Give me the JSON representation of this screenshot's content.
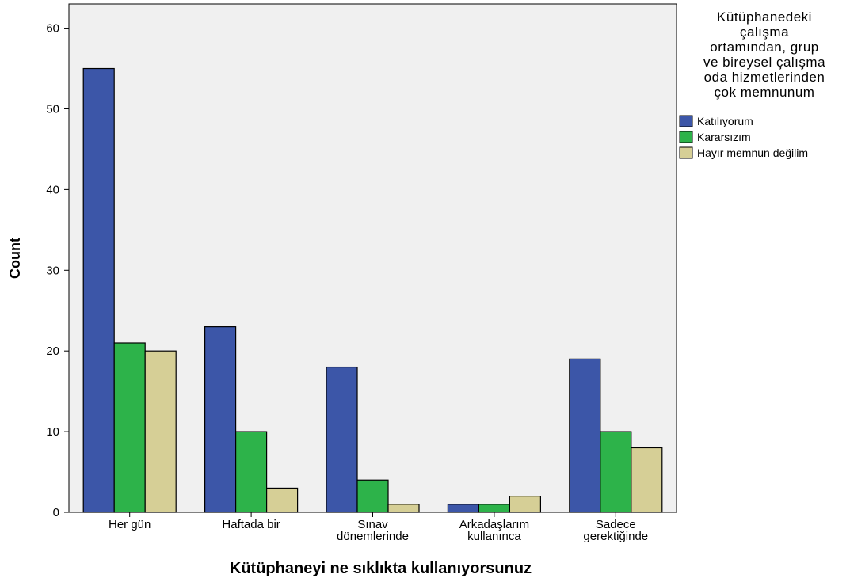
{
  "chart_data": {
    "type": "bar",
    "xlabel": "Kütüphaneyi ne sıklıkta kullanıyorsunuz",
    "ylabel": "Count",
    "ylim": [
      0,
      63
    ],
    "yticks": [
      0,
      10,
      20,
      30,
      40,
      50,
      60
    ],
    "categories": [
      [
        "Her gün"
      ],
      [
        "Haftada bir"
      ],
      [
        "Sınav",
        "dönemlerinde"
      ],
      [
        "Arkadaşlarım",
        "kullanınca"
      ],
      [
        "Sadece",
        "gerektiğinde"
      ]
    ],
    "legend": {
      "title": [
        "Kütüphanedeki",
        "çalışma",
        "ortamından, grup",
        "ve bireysel çalışma",
        "oda hizmetlerinden",
        "çok memnunum"
      ],
      "placement": "right"
    },
    "series": [
      {
        "name": "Katılıyorum",
        "color": "#3c56a8",
        "values": [
          55,
          23,
          18,
          1,
          19
        ]
      },
      {
        "name": "Kararsızım",
        "color": "#2db34a",
        "values": [
          21,
          10,
          4,
          1,
          10
        ]
      },
      {
        "name": "Hayır memnun değilim",
        "color": "#d6cf96",
        "values": [
          20,
          3,
          1,
          2,
          8
        ]
      }
    ],
    "plot_background": "#f0f0f0",
    "grid": false
  }
}
